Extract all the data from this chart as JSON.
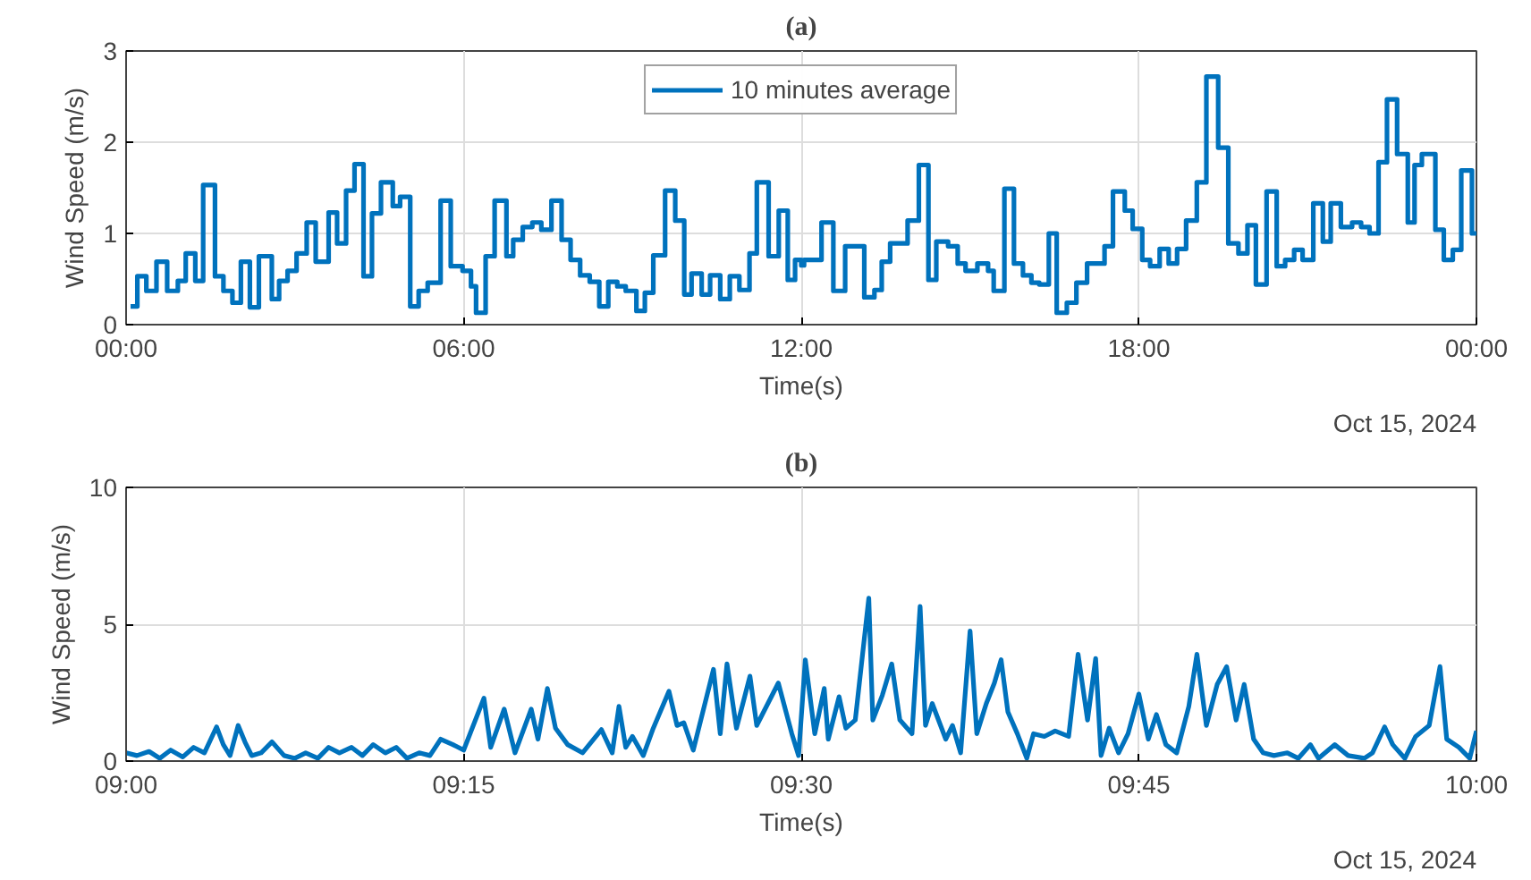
{
  "chart_data": [
    {
      "type": "step",
      "title": "(a)",
      "xlabel": "Time(s)",
      "ylabel": "Wind Speed (m/s)",
      "annotations": [
        "Oct 15, 2024"
      ],
      "xlim": [
        0,
        24
      ],
      "ylim": [
        0,
        3
      ],
      "xticks": [
        {
          "value": 0,
          "label": "00:00"
        },
        {
          "value": 6,
          "label": "06:00"
        },
        {
          "value": 12,
          "label": "12:00"
        },
        {
          "value": 18,
          "label": "18:00"
        },
        {
          "value": 24,
          "label": "00:00"
        }
      ],
      "yticks": [
        0,
        1,
        2,
        3
      ],
      "grid": true,
      "legend": "top",
      "line_style": "solid",
      "series": [
        {
          "name": "10 minutes average",
          "color": "#0072bd",
          "x": [
            0.08,
            0.2,
            0.36,
            0.54,
            0.73,
            0.92,
            1.06,
            1.23,
            1.37,
            1.58,
            1.73,
            1.89,
            2.04,
            2.2,
            2.36,
            2.59,
            2.72,
            2.87,
            3.03,
            3.21,
            3.37,
            3.6,
            3.75,
            3.91,
            4.06,
            4.22,
            4.37,
            4.53,
            4.74,
            4.87,
            5.05,
            5.2,
            5.36,
            5.59,
            5.77,
            5.98,
            6.13,
            6.22,
            6.39,
            6.55,
            6.76,
            6.88,
            7.05,
            7.22,
            7.38,
            7.56,
            7.74,
            7.9,
            8.07,
            8.24,
            8.41,
            8.57,
            8.73,
            8.88,
            9.07,
            9.22,
            9.37,
            9.58,
            9.76,
            9.92,
            10.05,
            10.23,
            10.38,
            10.56,
            10.73,
            10.9,
            11.08,
            11.21,
            11.42,
            11.6,
            11.76,
            11.89,
            12.0,
            12.05,
            12.36,
            12.57,
            12.78,
            13.12,
            13.3,
            13.43,
            13.58,
            13.89,
            14.09,
            14.26,
            14.4,
            14.61,
            14.78,
            14.92,
            15.13,
            15.32,
            15.42,
            15.61,
            15.78,
            15.94,
            16.09,
            16.23,
            16.4,
            16.54,
            16.72,
            16.89,
            17.08,
            17.39,
            17.54,
            17.75,
            17.89,
            18.06,
            18.2,
            18.37,
            18.53,
            18.68,
            18.84,
            19.03,
            19.2,
            19.41,
            19.59,
            19.77,
            19.93,
            20.08,
            20.27,
            20.45,
            20.6,
            20.76,
            20.91,
            21.1,
            21.27,
            21.41,
            21.59,
            21.79,
            21.95,
            22.1,
            22.26,
            22.41,
            22.59,
            22.78,
            22.9,
            23.03,
            23.27,
            23.42,
            23.58,
            23.73,
            23.92,
            24.0
          ],
          "values": [
            0.2,
            0.53,
            0.37,
            0.69,
            0.37,
            0.48,
            0.78,
            0.48,
            1.53,
            0.53,
            0.37,
            0.24,
            0.69,
            0.19,
            0.75,
            0.28,
            0.48,
            0.59,
            0.78,
            1.12,
            0.69,
            1.23,
            0.89,
            1.47,
            1.76,
            0.53,
            1.22,
            1.56,
            1.3,
            1.4,
            0.2,
            0.37,
            0.46,
            1.36,
            0.64,
            0.59,
            0.42,
            0.13,
            0.75,
            1.36,
            0.75,
            0.93,
            1.07,
            1.12,
            1.04,
            1.36,
            0.93,
            0.71,
            0.54,
            0.47,
            0.2,
            0.47,
            0.42,
            0.37,
            0.15,
            0.35,
            0.76,
            1.47,
            1.14,
            0.33,
            0.56,
            0.33,
            0.54,
            0.28,
            0.53,
            0.38,
            0.78,
            1.56,
            0.75,
            1.25,
            0.49,
            0.71,
            0.65,
            0.71,
            1.12,
            0.37,
            0.86,
            0.3,
            0.38,
            0.69,
            0.89,
            1.14,
            1.75,
            0.49,
            0.91,
            0.86,
            0.67,
            0.59,
            0.67,
            0.59,
            0.37,
            1.49,
            0.67,
            0.54,
            0.46,
            0.44,
            1.0,
            0.13,
            0.24,
            0.46,
            0.67,
            0.86,
            1.46,
            1.25,
            1.05,
            0.71,
            0.64,
            0.83,
            0.67,
            0.83,
            1.14,
            1.56,
            2.72,
            1.94,
            0.89,
            0.78,
            1.09,
            0.44,
            1.46,
            0.64,
            0.71,
            0.82,
            0.71,
            1.33,
            0.91,
            1.33,
            1.07,
            1.12,
            1.07,
            1.0,
            1.78,
            2.47,
            1.87,
            1.12,
            1.75,
            1.87,
            1.04,
            0.71,
            0.82,
            1.69,
            1.0,
            1.0
          ]
        }
      ]
    },
    {
      "type": "line",
      "title": "(b)",
      "xlabel": "Time(s)",
      "ylabel": "Wind Speed (m/s)",
      "annotations": [
        "Oct 15, 2024"
      ],
      "xlim": [
        9,
        10
      ],
      "ylim": [
        0,
        10
      ],
      "xticks": [
        {
          "value": 9,
          "label": "09:00"
        },
        {
          "value": 9.25,
          "label": "09:15"
        },
        {
          "value": 9.5,
          "label": "09:30"
        },
        {
          "value": 9.75,
          "label": "09:45"
        },
        {
          "value": 10,
          "label": "10:00"
        }
      ],
      "yticks": [
        0,
        5,
        10
      ],
      "grid": true,
      "line_style": "solid",
      "series": [
        {
          "color": "#0072bd",
          "x": [
            9.0,
            9.008,
            9.017,
            9.025,
            9.033,
            9.042,
            9.05,
            9.058,
            9.067,
            9.072,
            9.077,
            9.083,
            9.088,
            9.093,
            9.1,
            9.108,
            9.117,
            9.125,
            9.133,
            9.142,
            9.15,
            9.158,
            9.167,
            9.175,
            9.183,
            9.192,
            9.2,
            9.208,
            9.217,
            9.225,
            9.233,
            9.242,
            9.25,
            9.265,
            9.27,
            9.28,
            9.288,
            9.3,
            9.305,
            9.312,
            9.318,
            9.327,
            9.338,
            9.352,
            9.36,
            9.365,
            9.37,
            9.375,
            9.383,
            9.39,
            9.402,
            9.408,
            9.413,
            9.42,
            9.435,
            9.44,
            9.445,
            9.452,
            9.462,
            9.467,
            9.483,
            9.493,
            9.498,
            9.503,
            9.51,
            9.517,
            9.52,
            9.528,
            9.533,
            9.54,
            9.55,
            9.553,
            9.56,
            9.567,
            9.573,
            9.582,
            9.588,
            9.592,
            9.597,
            9.607,
            9.612,
            9.618,
            9.625,
            9.63,
            9.637,
            9.643,
            9.648,
            9.653,
            9.66,
            9.667,
            9.672,
            9.68,
            9.688,
            9.698,
            9.705,
            9.712,
            9.718,
            9.722,
            9.728,
            9.735,
            9.742,
            9.75,
            9.757,
            9.763,
            9.77,
            9.778,
            9.787,
            9.793,
            9.8,
            9.808,
            9.815,
            9.822,
            9.828,
            9.835,
            9.842,
            9.85,
            9.86,
            9.868,
            9.877,
            9.883,
            9.895,
            9.905,
            9.917,
            9.923,
            9.932,
            9.938,
            9.947,
            9.955,
            9.965,
            9.973,
            9.978,
            9.987,
            9.995,
            10.0
          ],
          "values": [
            0.3,
            0.2,
            0.35,
            0.1,
            0.4,
            0.15,
            0.5,
            0.3,
            1.25,
            0.6,
            0.2,
            1.3,
            0.7,
            0.2,
            0.3,
            0.7,
            0.2,
            0.1,
            0.3,
            0.1,
            0.5,
            0.3,
            0.5,
            0.2,
            0.6,
            0.3,
            0.5,
            0.1,
            0.3,
            0.2,
            0.8,
            0.6,
            0.4,
            2.3,
            0.5,
            1.9,
            0.3,
            1.9,
            0.8,
            2.65,
            1.2,
            0.6,
            0.3,
            1.15,
            0.3,
            2.0,
            0.5,
            0.9,
            0.2,
            1.15,
            2.55,
            1.3,
            1.4,
            0.4,
            3.35,
            1.0,
            3.55,
            1.2,
            3.1,
            1.3,
            2.85,
            1.0,
            0.2,
            3.7,
            1.0,
            2.65,
            0.8,
            2.35,
            1.2,
            1.5,
            5.95,
            1.5,
            2.4,
            3.55,
            1.5,
            1.0,
            5.65,
            1.3,
            2.1,
            0.8,
            1.3,
            0.3,
            4.75,
            1.0,
            2.1,
            2.85,
            3.7,
            1.8,
            1.0,
            0.1,
            1.0,
            0.9,
            1.1,
            0.9,
            3.9,
            1.5,
            3.75,
            0.2,
            1.2,
            0.3,
            1.0,
            2.45,
            0.8,
            1.7,
            0.6,
            0.3,
            2.0,
            3.9,
            1.3,
            2.8,
            3.45,
            1.5,
            2.8,
            0.8,
            0.3,
            0.2,
            0.3,
            0.1,
            0.6,
            0.1,
            0.6,
            0.2,
            0.1,
            0.3,
            1.25,
            0.6,
            0.1,
            0.9,
            1.3,
            3.45,
            0.8,
            0.5,
            0.1,
            1.1
          ]
        }
      ]
    }
  ]
}
